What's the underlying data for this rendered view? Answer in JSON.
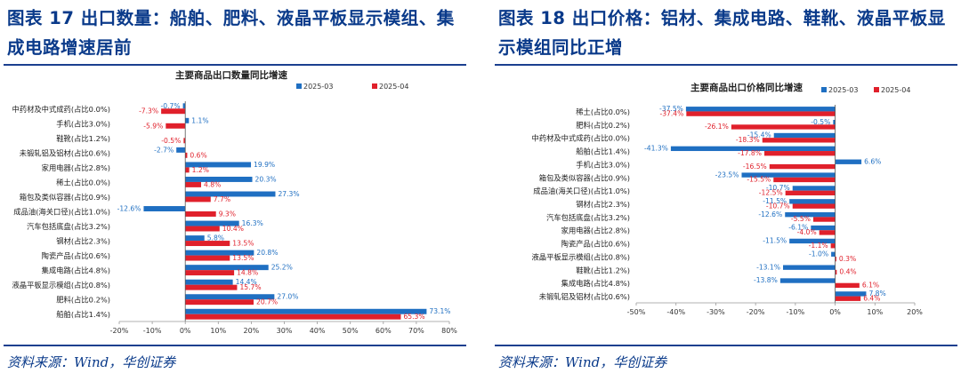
{
  "left": {
    "figure_title": "图表 17   出口数量：船舶、肥料、液晶平板显示模组、集成电路增速居前",
    "source": "资料来源：Wind，华创证券",
    "chart_data": {
      "type": "bar",
      "orientation": "horizontal",
      "title": "主要商品出口数量同比增速",
      "categories": [
        "中药材及中式成药(占比0.0%)",
        "手机(占比3.0%)",
        "鞋靴(占比1.2%)",
        "未锻轧铝及铝材(占比0.6%)",
        "家用电器(占比2.8%)",
        "稀土(占比0.0%)",
        "箱包及类似容器(占比0.9%)",
        "成品油(海关口径)(占比1.0%)",
        "汽车包括底盘(占比3.2%)",
        "钢材(占比2.3%)",
        "陶瓷产品(占比0.6%)",
        "集成电路(占比4.8%)",
        "液晶平板显示模组(占比0.8%)",
        "肥料(占比0.2%)",
        "船舶(占比1.4%)"
      ],
      "series": [
        {
          "name": "2025-03",
          "color": "#1f6fc2",
          "label_color": "#1f6fc2",
          "values": [
            -0.7,
            1.1,
            0,
            -2.7,
            19.9,
            20.3,
            27.3,
            -12.6,
            16.3,
            5.8,
            20.8,
            25.2,
            14.4,
            27.0,
            73.1
          ],
          "labels": [
            "-0.7%",
            "1.1%",
            "",
            "-2.7%",
            "19.9%",
            "20.3%",
            "27.3%",
            "-12.6%",
            "16.3%",
            "5.8%",
            "20.8%",
            "25.2%",
            "14.4%",
            "27.0%",
            "73.1%"
          ]
        },
        {
          "name": "2025-04",
          "color": "#e0202b",
          "label_color": "#e0202b",
          "values": [
            -7.3,
            -5.9,
            -0.5,
            0.6,
            1.2,
            4.8,
            7.7,
            9.3,
            10.4,
            13.5,
            13.5,
            14.8,
            15.7,
            20.7,
            65.3
          ],
          "labels": [
            "-7.3%",
            "-5.9%",
            "-0.5%",
            "0.6%",
            "1.2%",
            "4.8%",
            "7.7%",
            "9.3%",
            "10.4%",
            "13.5%",
            "13.5%",
            "14.8%",
            "15.7%",
            "20.7%",
            "65.3%"
          ]
        }
      ],
      "xlim": [
        -20,
        80
      ],
      "x_ticks": [
        -20,
        -10,
        0,
        10,
        20,
        30,
        40,
        50,
        60,
        70,
        80
      ],
      "x_tick_labels": [
        "-20%",
        "-10%",
        "0%",
        "10%",
        "20%",
        "30%",
        "40%",
        "50%",
        "60%",
        "70%",
        "80%"
      ],
      "legend_position": "top",
      "grid": false
    }
  },
  "right": {
    "figure_title": "图表 18   出口价格：铝材、集成电路、鞋靴、液晶平板显示模组同比正增",
    "source": "资料来源：Wind，华创证券",
    "chart_data": {
      "type": "bar",
      "orientation": "horizontal",
      "title": "主要商品出口价格同比增速",
      "categories": [
        "稀土(占比0.0%)",
        "肥料(占比0.2%)",
        "中药材及中式成药(占比0.0%)",
        "船舶(占比1.4%)",
        "手机(占比3.0%)",
        "箱包及类似容器(占比0.9%)",
        "成品油(海关口径)(占比1.0%)",
        "钢材(占比2.3%)",
        "汽车包括底盘(占比3.2%)",
        "家用电器(占比2.8%)",
        "陶瓷产品(占比0.6%)",
        "液晶平板显示模组(占比0.8%)",
        "鞋靴(占比1.2%)",
        "集成电路(占比4.8%)",
        "未锻轧铝及铝材(占比0.6%)"
      ],
      "series": [
        {
          "name": "2025-03",
          "color": "#1f6fc2",
          "label_color": "#1f6fc2",
          "values": [
            -37.5,
            -0.5,
            -15.4,
            -41.3,
            6.6,
            -23.5,
            -10.7,
            -11.5,
            -12.6,
            -6.1,
            -11.5,
            -1.0,
            -13.1,
            -13.8,
            7.8
          ],
          "labels": [
            "-37.5%",
            "-0.5%",
            "-15.4%",
            "-41.3%",
            "6.6%",
            "-23.5%",
            "-10.7%",
            "-11.5%",
            "-12.6%",
            "-6.1%",
            "-11.5%",
            "-1.0%",
            "-13.1%",
            "-13.8%",
            "7.8%"
          ]
        },
        {
          "name": "2025-04",
          "color": "#e0202b",
          "label_color": "#e0202b",
          "values": [
            -37.4,
            -26.1,
            -18.3,
            -17.8,
            -16.5,
            -15.5,
            -12.5,
            -10.7,
            -5.5,
            -4.0,
            -1.1,
            0.3,
            0.4,
            6.1,
            6.4
          ],
          "labels": [
            "-37.4%",
            "-26.1%",
            "-18.3%",
            "-17.8%",
            "-16.5%",
            "-15.5%",
            "-12.5%",
            "-10.7%",
            "-5.5%",
            "-4.0%",
            "-1.1%",
            "0.3%",
            "0.4%",
            "6.1%",
            "6.4%"
          ]
        }
      ],
      "xlim": [
        -50,
        20
      ],
      "x_ticks": [
        -50,
        -40,
        -30,
        -20,
        -10,
        0,
        10,
        20
      ],
      "x_tick_labels": [
        "-50%",
        "-40%",
        "-30%",
        "-20%",
        "-10%",
        "0%",
        "10%",
        "20%"
      ],
      "legend_position": "top",
      "grid": false
    }
  }
}
